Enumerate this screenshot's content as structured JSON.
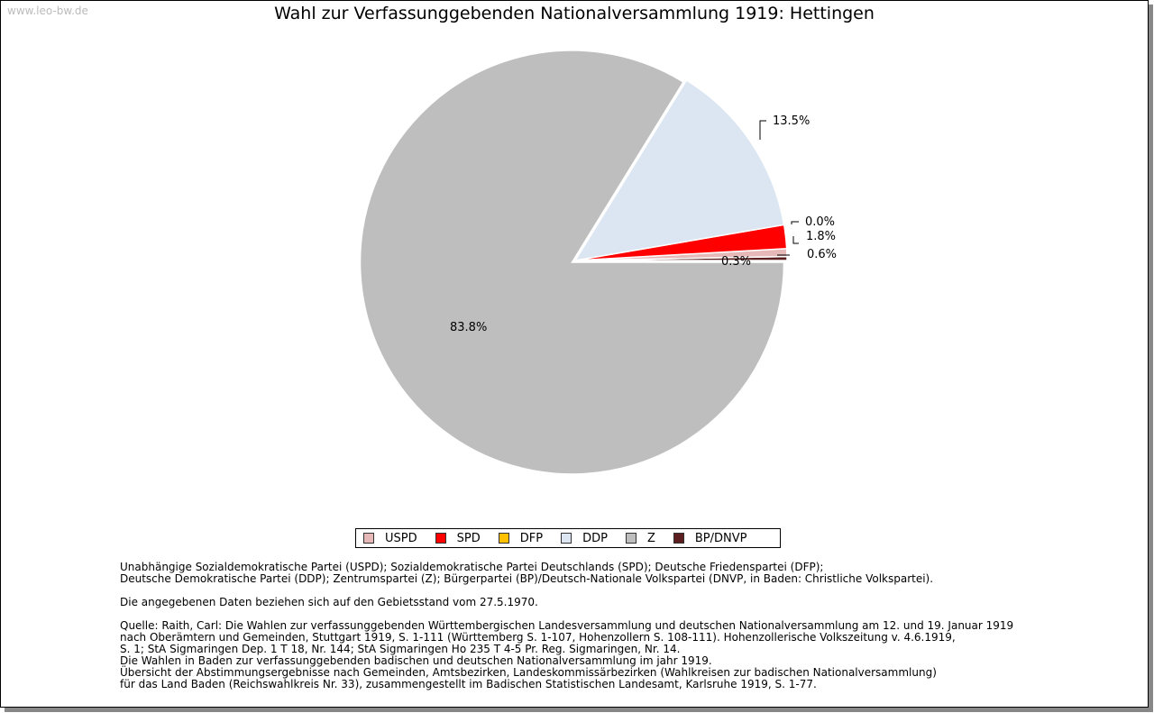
{
  "watermark": "www.leo-bw.de",
  "chart_data": {
    "type": "pie",
    "title": "Wahl zur Verfassunggebenden Nationalversammlung 1919: Hettingen",
    "slices": [
      {
        "name": "BP/DNVP",
        "value": 0.3,
        "label": "0.3%",
        "color": "#5c1e1e"
      },
      {
        "name": "USPD",
        "value": 0.6,
        "label": "0.6%",
        "color": "#e6b8b8"
      },
      {
        "name": "SPD",
        "value": 1.8,
        "label": "1.8%",
        "color": "#ff0000"
      },
      {
        "name": "DFP",
        "value": 0.0,
        "label": "0.0%",
        "color": "#ffc000"
      },
      {
        "name": "DDP",
        "value": 13.5,
        "label": "13.5%",
        "color": "#dce6f2"
      },
      {
        "name": "Z",
        "value": 83.8,
        "label": "83.8%",
        "color": "#bebebe"
      }
    ],
    "legend": [
      {
        "name": "USPD",
        "color": "#e6b8b8"
      },
      {
        "name": "SPD",
        "color": "#ff0000"
      },
      {
        "name": "DFP",
        "color": "#ffc000"
      },
      {
        "name": "DDP",
        "color": "#dce6f2"
      },
      {
        "name": "Z",
        "color": "#bebebe"
      },
      {
        "name": "BP/DNVP",
        "color": "#5c1e1e"
      }
    ],
    "legend_position": "bottom"
  },
  "notes": {
    "p1": [
      "Unabhängige Sozialdemokratische Partei (USPD); Sozialdemokratische Partei Deutschlands (SPD); Deutsche Friedenspartei (DFP);",
      "Deutsche Demokratische Partei (DDP); Zentrumspartei (Z); Bürgerpartei (BP)/Deutsch-Nationale Volkspartei (DNVP, in Baden: Christliche Volkspartei)."
    ],
    "p2": [
      "Die angegebenen Daten beziehen sich auf den Gebietsstand vom 27.5.1970."
    ],
    "p3": [
      "Quelle: Raith, Carl: Die Wahlen zur verfassunggebenden Württembergischen Landesversammlung und deutschen Nationalversammlung am 12. und 19. Januar 1919",
      "nach Oberämtern und Gemeinden, Stuttgart 1919, S. 1-111 (Württemberg S. 1-107, Hohenzollern S. 108-111). Hohenzollerische Volkszeitung v. 4.6.1919,",
      "S. 1; StA Sigmaringen Dep. 1 T 18, Nr. 144; StA Sigmaringen Ho 235 T 4-5 Pr. Reg. Sigmaringen, Nr. 14.",
      "Die Wahlen in Baden zur verfassunggebenden badischen und deutschen Nationalversammlung im jahr 1919.",
      "Übersicht der Abstimmungsergebnisse nach Gemeinden, Amtsbezirken, Landeskommissärbezirken (Wahlkreisen zur badischen Nationalversammlung)",
      "für das Land Baden (Reichswahlkreis Nr. 33), zusammengestellt im Badischen Statistischen Landesamt, Karlsruhe 1919, S. 1-77."
    ]
  }
}
